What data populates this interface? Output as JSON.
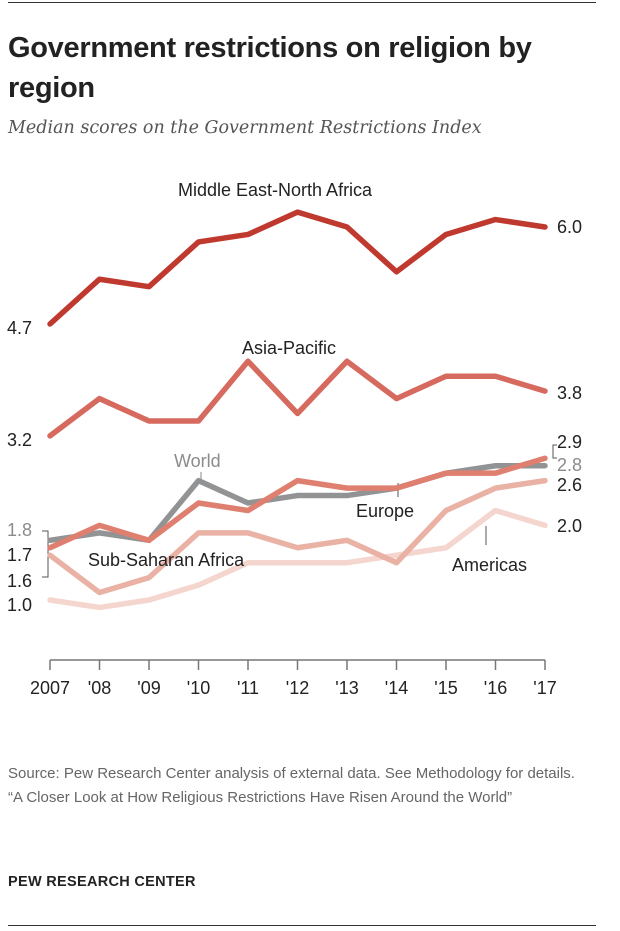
{
  "title": "Government restrictions on religion by region",
  "subtitle": "Median scores on the Government Restrictions Index",
  "source": "Source: Pew Research Center analysis of external data. See Methodology for details.",
  "report": "“A Closer Look at How Religious Restrictions Have Risen Around the World”",
  "brand": "PEW RESEARCH CENTER",
  "chart_data": {
    "type": "line",
    "title": "Government restrictions on religion by region",
    "subtitle": "Median scores on the Government Restrictions Index",
    "x": [
      "2007",
      "'08",
      "'09",
      "'10",
      "'11",
      "'12",
      "'13",
      "'14",
      "'15",
      "'16",
      "'17"
    ],
    "grid": false,
    "legend": "direct labels",
    "series": [
      {
        "name": "Middle East-North Africa",
        "color": "#c0392f",
        "values": [
          4.7,
          5.3,
          5.2,
          5.8,
          5.9,
          6.2,
          6.0,
          5.4,
          5.9,
          6.1,
          6.0
        ],
        "start_label": "4.7",
        "end_label": "6.0"
      },
      {
        "name": "Asia-Pacific",
        "color": "#d76a5e",
        "values": [
          3.2,
          3.7,
          3.4,
          3.4,
          4.2,
          3.5,
          4.2,
          3.7,
          4.0,
          4.0,
          3.8
        ],
        "start_label": "3.2",
        "end_label": "3.8"
      },
      {
        "name": "Americas",
        "color": "#f4d6ce",
        "values": [
          1.0,
          0.9,
          1.0,
          1.2,
          1.5,
          1.5,
          1.5,
          1.6,
          1.7,
          2.2,
          2.0
        ],
        "start_label": "1.0",
        "end_label": "2.0"
      },
      {
        "name": "Sub-Saharan Africa",
        "color": "#e9b2a5",
        "values": [
          1.6,
          1.1,
          1.3,
          1.9,
          1.9,
          1.7,
          1.8,
          1.5,
          2.2,
          2.5,
          2.6
        ],
        "start_label": "1.6",
        "end_label": "2.6"
      },
      {
        "name": "World",
        "color": "#929395",
        "values": [
          1.8,
          1.9,
          1.8,
          2.6,
          2.3,
          2.4,
          2.4,
          2.5,
          2.7,
          2.8,
          2.8
        ],
        "start_label": "1.8",
        "end_label": "2.8"
      },
      {
        "name": "Europe",
        "color": "#df7f70",
        "values": [
          1.7,
          2.0,
          1.8,
          2.3,
          2.2,
          2.6,
          2.5,
          2.5,
          2.7,
          2.7,
          2.9
        ],
        "start_label": "1.7",
        "end_label": "2.9"
      }
    ]
  }
}
